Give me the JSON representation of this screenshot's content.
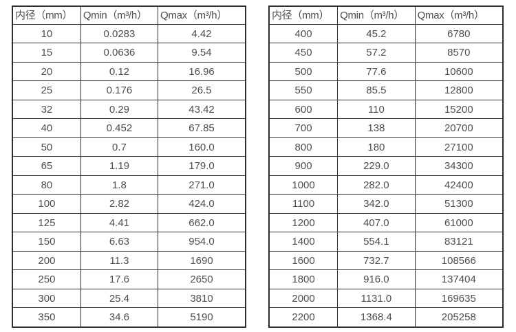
{
  "page": {
    "background": "#ffffff",
    "border_color": "#2e2e2e",
    "text_color": "#4d4d4d"
  },
  "chart_data": [
    {
      "type": "table",
      "name": "flow-rate-table-small-diameters",
      "columns": [
        "内径（mm）",
        "Qmin（m³/h）",
        "Qmax（m³/h）"
      ],
      "rows": [
        [
          "10",
          "0.0283",
          "4.42"
        ],
        [
          "15",
          "0.0636",
          "9.54"
        ],
        [
          "20",
          "0.12",
          "16.96"
        ],
        [
          "25",
          "0.176",
          "26.5"
        ],
        [
          "32",
          "0.29",
          "43.42"
        ],
        [
          "40",
          "0.452",
          "67.85"
        ],
        [
          "50",
          "0.7",
          "160.0"
        ],
        [
          "65",
          "1.19",
          "179.0"
        ],
        [
          "80",
          "1.8",
          "271.0"
        ],
        [
          "100",
          "2.82",
          "424.0"
        ],
        [
          "125",
          "4.41",
          "662.0"
        ],
        [
          "150",
          "6.63",
          "954.0"
        ],
        [
          "200",
          "11.3",
          "1690"
        ],
        [
          "250",
          "17.6",
          "2650"
        ],
        [
          "300",
          "25.4",
          "3810"
        ],
        [
          "350",
          "34.6",
          "5190"
        ]
      ]
    },
    {
      "type": "table",
      "name": "flow-rate-table-large-diameters",
      "columns": [
        "内径（mm）",
        "Qmin（m³/h）",
        "Qmax（m³/h）"
      ],
      "rows": [
        [
          "400",
          "45.2",
          "6780"
        ],
        [
          "450",
          "57.2",
          "8570"
        ],
        [
          "500",
          "77.6",
          "10600"
        ],
        [
          "550",
          "85.5",
          "12800"
        ],
        [
          "600",
          "110",
          "15200"
        ],
        [
          "700",
          "138",
          "20700"
        ],
        [
          "800",
          "180",
          "27100"
        ],
        [
          "900",
          "229.0",
          "34300"
        ],
        [
          "1000",
          "282.0",
          "42400"
        ],
        [
          "1100",
          "342.0",
          "51300"
        ],
        [
          "1200",
          "407.0",
          "61000"
        ],
        [
          "1400",
          "554.1",
          "83121"
        ],
        [
          "1600",
          "732.7",
          "108566"
        ],
        [
          "1800",
          "916.0",
          "137404"
        ],
        [
          "2000",
          "1131.0",
          "169635"
        ],
        [
          "2200",
          "1368.4",
          "205258"
        ]
      ]
    }
  ]
}
